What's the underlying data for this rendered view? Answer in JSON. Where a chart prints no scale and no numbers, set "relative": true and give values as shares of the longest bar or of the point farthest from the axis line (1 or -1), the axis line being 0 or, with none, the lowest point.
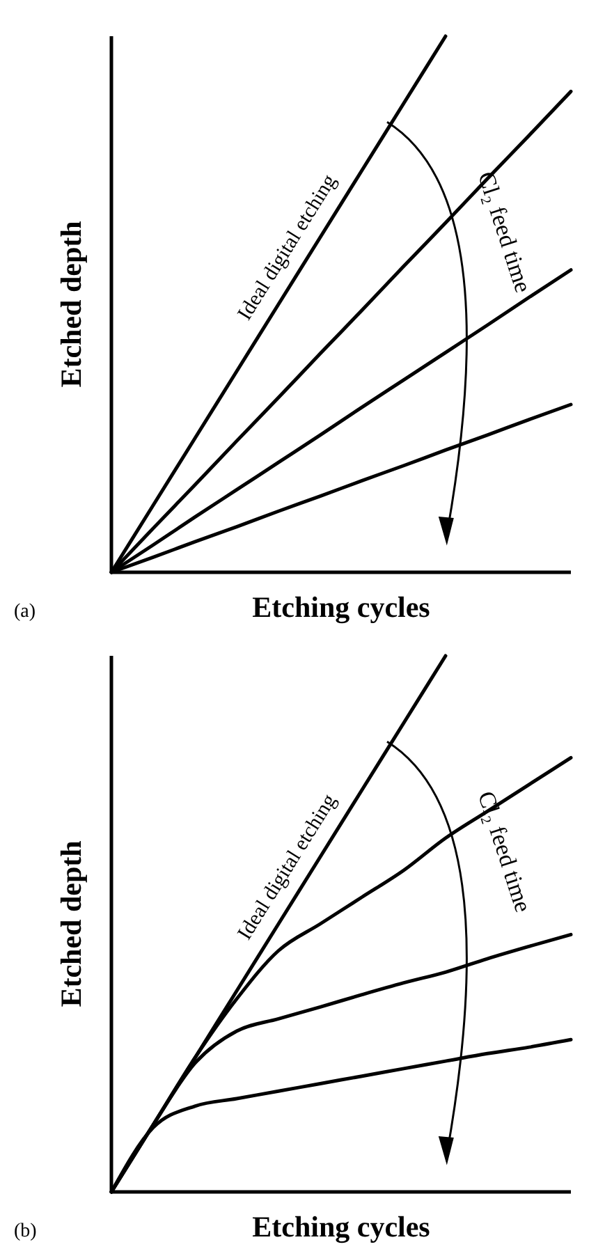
{
  "chart_data": [
    {
      "type": "line",
      "relative": true,
      "xlabel": "Etching cycles",
      "ylabel": "Etched depth",
      "categories": [
        null,
        null,
        null,
        null,
        null,
        null,
        null,
        null,
        null,
        null,
        null,
        null
      ],
      "series": [
        {
          "color": "#000000",
          "values": [
            0,
            0.125,
            0.25,
            0.375,
            0.5,
            0.625,
            0.75,
            0.875,
            1,
            null,
            null,
            null
          ]
        },
        {
          "color": "#000000",
          "values": [
            0,
            0.082,
            0.163,
            0.245,
            0.326,
            0.408,
            0.489,
            0.571,
            0.652,
            0.734,
            0.815,
            0.897
          ]
        },
        {
          "color": "#000000",
          "values": [
            0,
            0.051,
            0.103,
            0.154,
            0.205,
            0.256,
            0.308,
            0.359,
            0.41,
            0.461,
            0.513,
            0.564
          ]
        },
        {
          "color": "#000000",
          "values": [
            0,
            0.028,
            0.057,
            0.085,
            0.114,
            0.142,
            0.171,
            0.199,
            0.228,
            0.256,
            0.285,
            0.313
          ]
        }
      ],
      "annotations": [
        "Ideal digital etching",
        "Cl₂ feed time",
        "(a)"
      ]
    },
    {
      "type": "line",
      "relative": true,
      "xlabel": "Etching cycles",
      "ylabel": "Etched depth",
      "categories": [
        null,
        null,
        null,
        null,
        null,
        null,
        null,
        null,
        null,
        null,
        null,
        null
      ],
      "series": [
        {
          "color": "#000000",
          "values": [
            0,
            0.125,
            0.25,
            0.375,
            0.5,
            0.625,
            0.75,
            0.875,
            1,
            null,
            null,
            null
          ]
        },
        {
          "color": "#000000",
          "values": [
            0,
            0.125,
            0.25,
            0.36,
            0.45,
            0.5,
            0.55,
            0.6,
            0.66,
            0.71,
            0.76,
            0.81
          ]
        },
        {
          "color": "#000000",
          "values": [
            0,
            0.125,
            0.24,
            0.3,
            0.323,
            0.345,
            0.368,
            0.39,
            0.41,
            0.435,
            0.458,
            0.48
          ]
        },
        {
          "color": "#000000",
          "values": [
            0,
            0.12,
            0.16,
            0.174,
            0.188,
            0.202,
            0.216,
            0.23,
            0.244,
            0.258,
            0.27,
            0.284
          ]
        }
      ],
      "annotations": [
        "Ideal digital etching",
        "Cl₂ feed time",
        "(b)"
      ]
    }
  ]
}
